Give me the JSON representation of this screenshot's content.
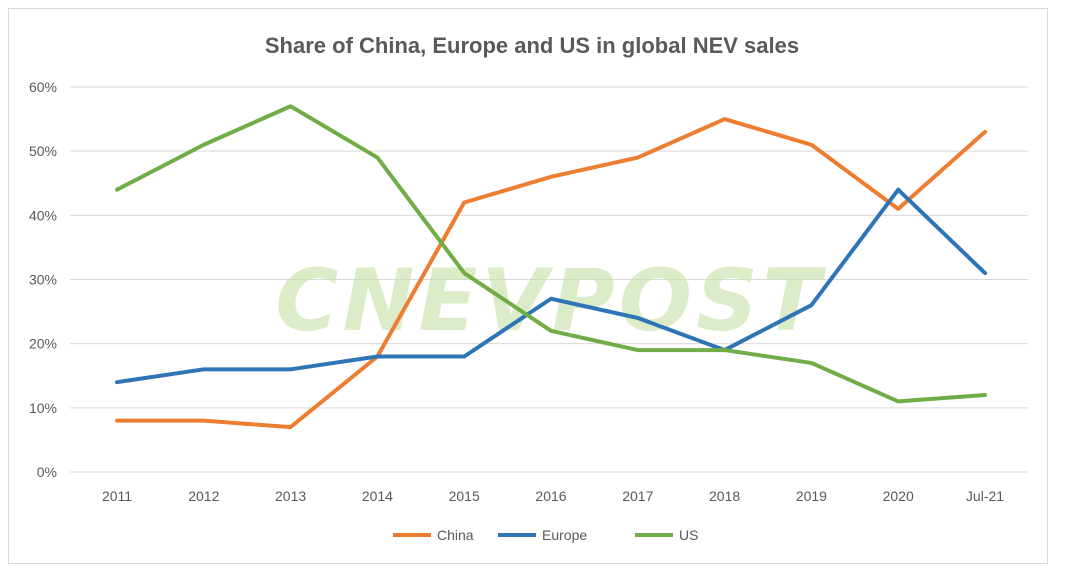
{
  "chart_data": {
    "type": "line",
    "title": "Share of China, Europe and US in global NEV sales",
    "xlabel": "",
    "ylabel": "",
    "categories": [
      "2011",
      "2012",
      "2013",
      "2014",
      "2015",
      "2016",
      "2017",
      "2018",
      "2019",
      "2020",
      "Jul-21"
    ],
    "yticks": [
      "0%",
      "10%",
      "20%",
      "30%",
      "40%",
      "50%",
      "60%"
    ],
    "ylim": [
      0,
      60
    ],
    "grid": true,
    "legend_position": "bottom",
    "watermark": "CNEVPOST",
    "series": [
      {
        "name": "China",
        "color": "#ed7d31",
        "values": [
          8,
          8,
          7,
          18,
          42,
          46,
          49,
          55,
          51,
          41,
          53
        ]
      },
      {
        "name": "Europe",
        "color": "#2e75b6",
        "values": [
          14,
          16,
          16,
          18,
          18,
          27,
          24,
          19,
          26,
          44,
          31
        ]
      },
      {
        "name": "US",
        "color": "#70ad47",
        "values": [
          44,
          51,
          57,
          49,
          31,
          22,
          19,
          19,
          17,
          11,
          12
        ]
      }
    ]
  }
}
